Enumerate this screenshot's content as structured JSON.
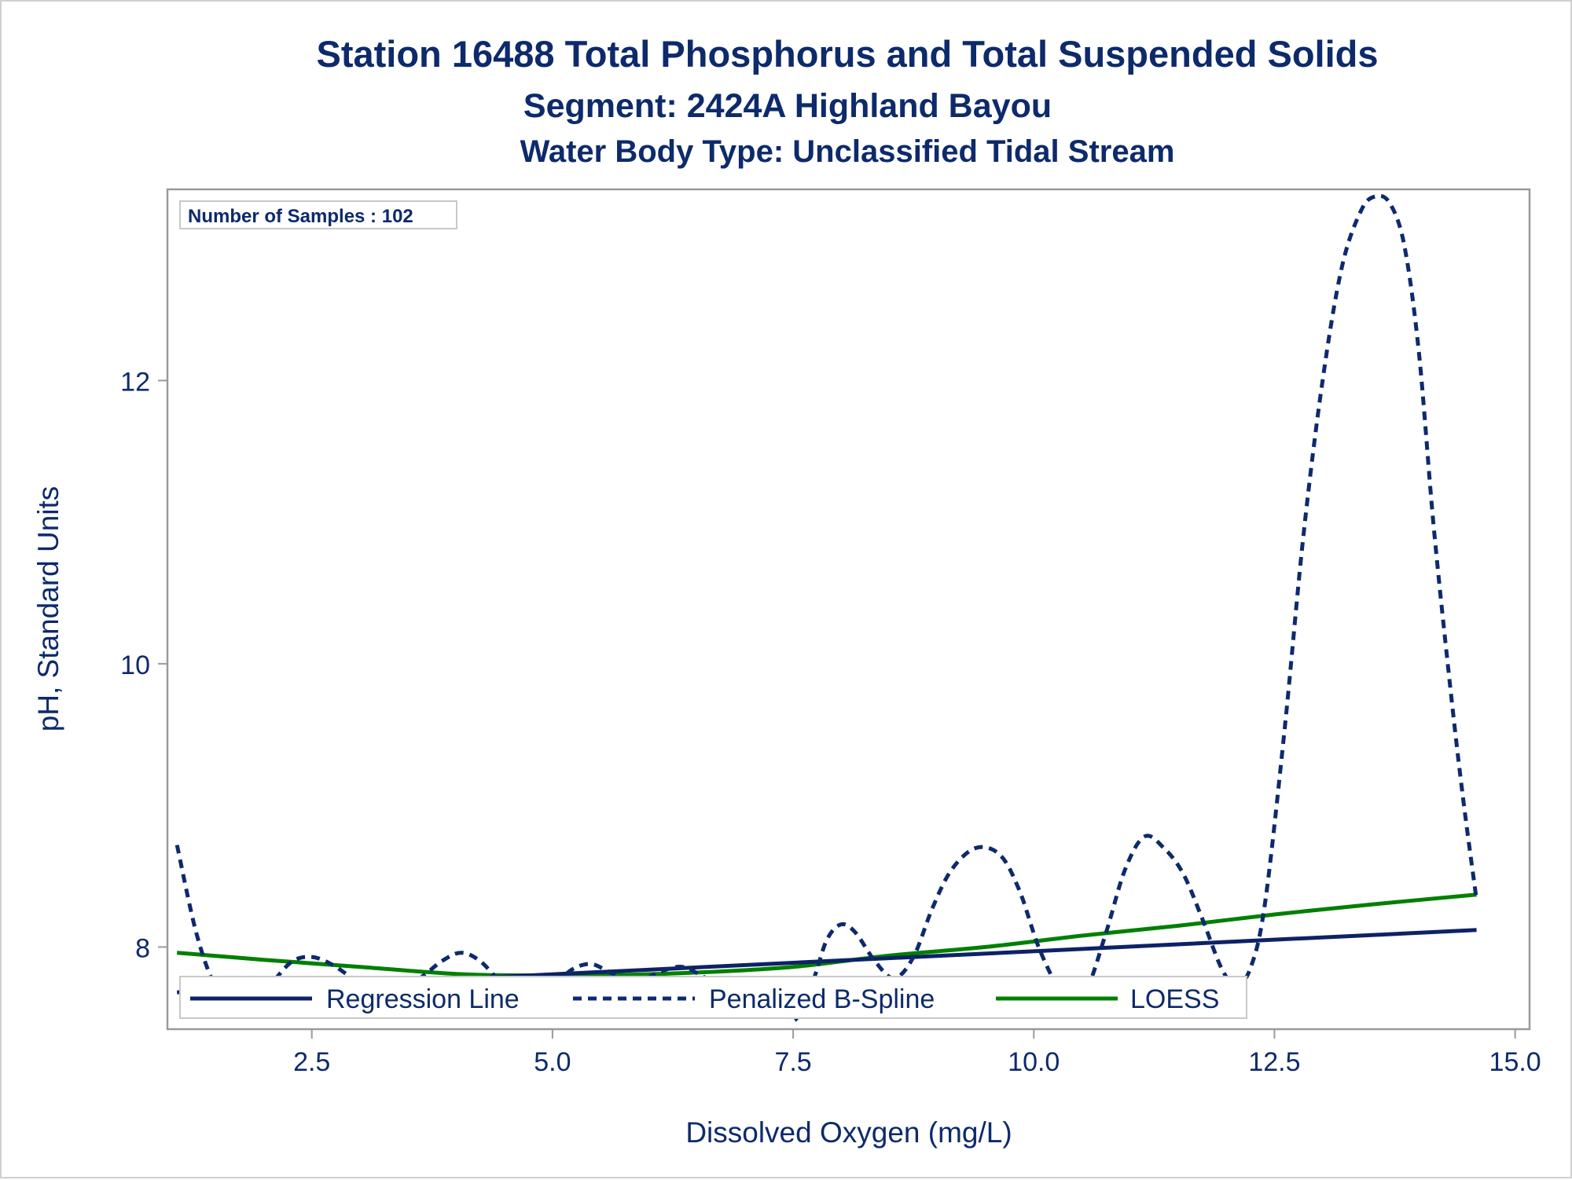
{
  "chart_data": {
    "type": "line",
    "title": "Station 16488  Total Phosphorus and Total Suspended Solids",
    "subtitle": "Segment: 2424A  Highland Bayou",
    "subtitle2": "Water Body Type: Unclassified Tidal Stream",
    "xlabel": "Dissolved Oxygen (mg/L)",
    "ylabel": "pH, Standard Units",
    "xlim": [
      1.0,
      15.15
    ],
    "ylim": [
      7.42,
      13.35
    ],
    "x_ticks": [
      2.5,
      5.0,
      7.5,
      10.0,
      12.5,
      15.0
    ],
    "x_tick_labels": [
      "2.5",
      "5.0",
      "7.5",
      "10.0",
      "12.5",
      "15.0"
    ],
    "y_ticks": [
      8,
      10,
      12
    ],
    "y_tick_labels": [
      "8",
      "10",
      "12"
    ],
    "grid": false,
    "annotation": "Number of Samples : 102",
    "legend_position": "bottom-inside",
    "series": [
      {
        "name": "Regression Line",
        "style": "solid",
        "color": "#0d2266",
        "x": [
          1.1,
          14.6
        ],
        "y": [
          7.68,
          8.12
        ]
      },
      {
        "name": "Penalized B-Spline",
        "style": "dashed",
        "color": "#0d2a6b",
        "x": [
          1.1,
          1.3,
          1.5,
          1.7,
          1.9,
          2.1,
          2.3,
          2.5,
          2.7,
          2.9,
          3.1,
          3.3,
          3.6,
          3.85,
          4.05,
          4.25,
          4.5,
          4.75,
          5.0,
          5.2,
          5.4,
          5.6,
          5.85,
          6.1,
          6.35,
          6.6,
          6.85,
          7.1,
          7.3,
          7.5,
          7.7,
          7.85,
          8.0,
          8.15,
          8.35,
          8.55,
          8.75,
          8.95,
          9.15,
          9.4,
          9.65,
          9.85,
          10.05,
          10.25,
          10.4,
          10.55,
          10.75,
          10.95,
          11.15,
          11.35,
          11.55,
          11.75,
          11.95,
          12.1,
          12.25,
          12.4,
          12.6,
          12.8,
          13.0,
          13.2,
          13.4,
          13.55,
          13.7,
          13.85,
          14.0,
          14.15,
          14.3,
          14.45,
          14.6
        ],
        "y": [
          8.72,
          8.1,
          7.72,
          7.6,
          7.62,
          7.76,
          7.9,
          7.93,
          7.88,
          7.79,
          7.7,
          7.68,
          7.77,
          7.9,
          7.96,
          7.9,
          7.73,
          7.65,
          7.72,
          7.84,
          7.88,
          7.82,
          7.74,
          7.82,
          7.86,
          7.78,
          7.72,
          7.78,
          7.73,
          7.48,
          7.75,
          8.05,
          8.16,
          8.1,
          7.9,
          7.78,
          7.93,
          8.28,
          8.55,
          8.7,
          8.65,
          8.4,
          8.0,
          7.72,
          7.65,
          7.7,
          8.1,
          8.55,
          8.78,
          8.7,
          8.52,
          8.2,
          7.85,
          7.73,
          7.85,
          8.3,
          9.5,
          10.9,
          12.0,
          12.8,
          13.2,
          13.3,
          13.25,
          12.95,
          12.2,
          11.0,
          10.0,
          9.1,
          8.33
        ]
      },
      {
        "name": "LOESS",
        "style": "solid",
        "color": "#008000",
        "x": [
          1.1,
          2.0,
          3.0,
          4.0,
          4.7,
          5.5,
          6.5,
          7.5,
          8.5,
          9.5,
          10.5,
          11.5,
          12.5,
          13.5,
          14.6
        ],
        "y": [
          7.96,
          7.91,
          7.86,
          7.81,
          7.8,
          7.8,
          7.82,
          7.86,
          7.94,
          8.0,
          8.08,
          8.15,
          8.23,
          8.3,
          8.37
        ]
      }
    ]
  }
}
